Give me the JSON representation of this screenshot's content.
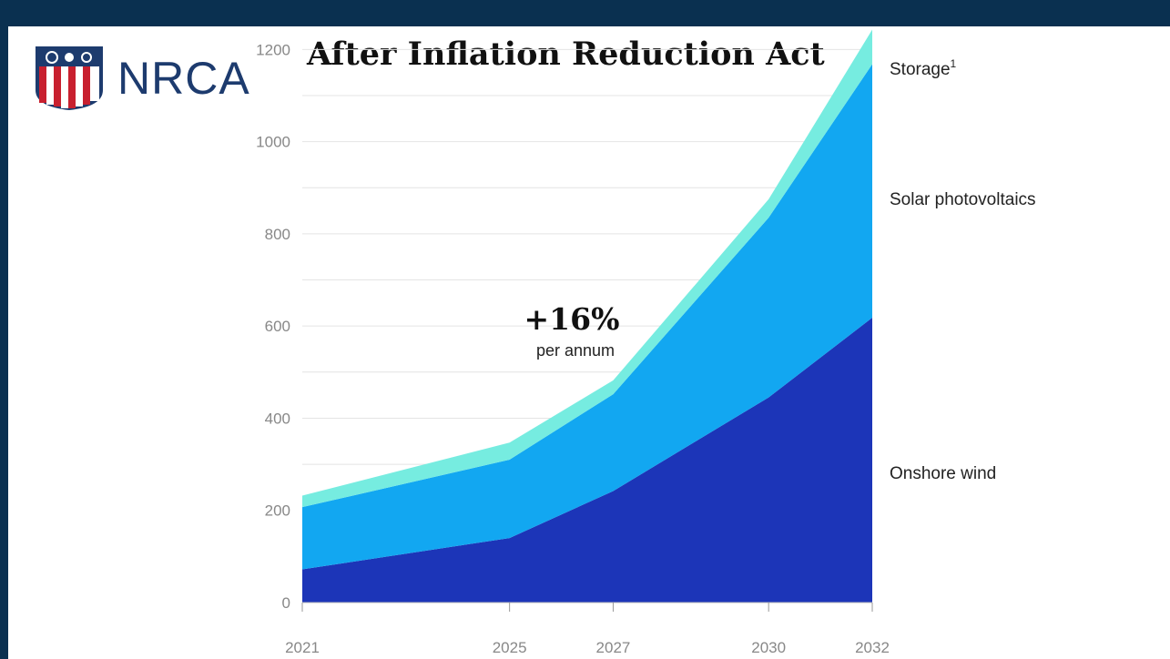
{
  "header": {
    "logo_text": "NRCA",
    "title": "After Inflation Reduction Act"
  },
  "colors": {
    "background_bar": "#0a3050",
    "onshore_wind": "#1c35b8",
    "solar": "#12a7f1",
    "storage": "#76ece0"
  },
  "chart_data": {
    "type": "area",
    "stacked": true,
    "x": [
      2021,
      2025,
      2027,
      2030,
      2032
    ],
    "x_tick_labels": [
      "2021",
      "2025",
      "2027",
      "2030",
      "2032"
    ],
    "ylim": [
      0,
      1250
    ],
    "y_ticks": [
      0,
      200,
      400,
      600,
      800,
      1000,
      1200
    ],
    "grid": true,
    "series": [
      {
        "name": "Onshore wind",
        "values": [
          72,
          140,
          242,
          445,
          618
        ]
      },
      {
        "name": "Solar photovoltaics",
        "values": [
          135,
          170,
          210,
          390,
          550
        ]
      },
      {
        "name": "Storage",
        "values": [
          25,
          37,
          30,
          40,
          75
        ]
      }
    ],
    "series_label_sup": "1",
    "annotation": {
      "value": "+16%",
      "text": "per annum"
    }
  }
}
